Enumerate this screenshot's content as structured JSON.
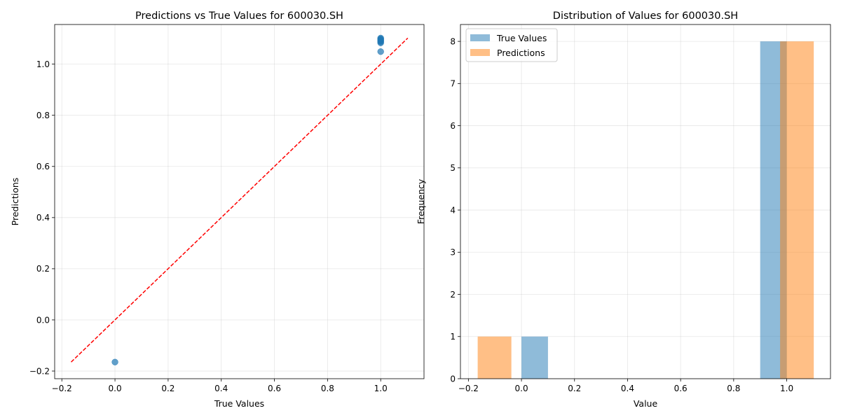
{
  "chart_data": [
    {
      "type": "scatter",
      "title": "Predictions vs True Values for 600030.SH",
      "xlabel": "True Values",
      "ylabel": "Predictions",
      "xlim": [
        -0.227,
        1.163
      ],
      "ylim": [
        -0.23,
        1.155
      ],
      "xticks": [
        -0.2,
        0.0,
        0.2,
        0.4,
        0.6,
        0.8,
        1.0
      ],
      "xtick_labels": [
        "−0.2",
        "0.0",
        "0.2",
        "0.4",
        "0.6",
        "0.8",
        "1.0"
      ],
      "yticks": [
        -0.2,
        0.0,
        0.2,
        0.4,
        0.6,
        0.8,
        1.0
      ],
      "ytick_labels": [
        "−0.2",
        "0.0",
        "0.2",
        "0.4",
        "0.6",
        "0.8",
        "1.0"
      ],
      "grid": true,
      "series": [
        {
          "kind": "points",
          "color": "#1f77b4",
          "points": [
            {
              "x": 0.0,
              "y": -0.165
            },
            {
              "x": 1.0,
              "y": 1.049
            },
            {
              "x": 1.0,
              "y": 1.083
            },
            {
              "x": 1.0,
              "y": 1.087
            },
            {
              "x": 1.0,
              "y": 1.09
            },
            {
              "x": 1.0,
              "y": 1.093
            },
            {
              "x": 1.0,
              "y": 1.096
            },
            {
              "x": 1.0,
              "y": 1.099
            },
            {
              "x": 1.0,
              "y": 1.102
            }
          ]
        },
        {
          "kind": "reference-line",
          "color": "#ff0000",
          "dash": true,
          "points": [
            {
              "x": -0.165,
              "y": -0.165
            },
            {
              "x": 1.102,
              "y": 1.102
            }
          ]
        }
      ]
    },
    {
      "type": "bar",
      "subtype": "histogram",
      "title": "Distribution of Values for 600030.SH",
      "xlabel": "Value",
      "ylabel": "Frequency",
      "xlim": [
        -0.23,
        1.165
      ],
      "ylim": [
        0,
        8.4
      ],
      "xticks": [
        -0.2,
        0.0,
        0.2,
        0.4,
        0.6,
        0.8,
        1.0
      ],
      "xtick_labels": [
        "−0.2",
        "0.0",
        "0.2",
        "0.4",
        "0.6",
        "0.8",
        "1.0"
      ],
      "yticks": [
        0,
        1,
        2,
        3,
        4,
        5,
        6,
        7,
        8
      ],
      "ytick_labels": [
        "0",
        "1",
        "2",
        "3",
        "4",
        "5",
        "6",
        "7",
        "8"
      ],
      "grid": true,
      "legend_position": "top-left",
      "series": [
        {
          "name": "True Values",
          "color": "#1f77b4",
          "opacity": 0.5,
          "bins": [
            {
              "x0": 0.0,
              "x1": 0.1,
              "count": 1
            },
            {
              "x0": 0.9,
              "x1": 1.0,
              "count": 8
            }
          ]
        },
        {
          "name": "Predictions",
          "color": "#ff7f0e",
          "opacity": 0.5,
          "bins": [
            {
              "x0": -0.165,
              "x1": -0.038,
              "count": 1
            },
            {
              "x0": 0.975,
              "x1": 1.102,
              "count": 8
            }
          ]
        }
      ]
    }
  ]
}
